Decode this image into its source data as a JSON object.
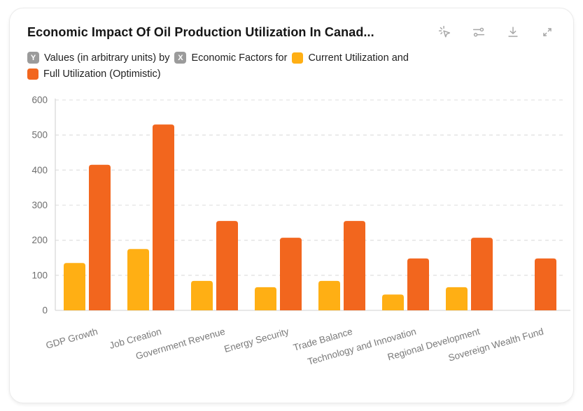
{
  "card": {
    "title": "Economic Impact Of Oil Production Utilization In Canad..."
  },
  "toolbar": {
    "icons": [
      "interact-icon",
      "sliders-icon",
      "download-icon",
      "expand-icon"
    ]
  },
  "subtitle": {
    "y_badge": "Y",
    "y_text": "Values (in arbitrary units) by",
    "x_badge": "X",
    "x_text": "Economic Factors for",
    "series1_text": "Current Utilization and",
    "series2_text": "Full Utilization (Optimistic)"
  },
  "colors": {
    "series1": "#FFAF14",
    "series2": "#F2661E",
    "grid": "#e3e3e3",
    "axis": "#d9d9d9",
    "tick_label": "#6e6e6e",
    "category_label": "#7a7a7a"
  },
  "chart_data": {
    "type": "bar",
    "title": "Economic Impact Of Oil Production Utilization In Canad...",
    "ylabel": "Values (in arbitrary units)",
    "xlabel": "Economic Factors",
    "categories": [
      "GDP Growth",
      "Job Creation",
      "Government Revenue",
      "Energy Security",
      "Trade Balance",
      "Technology and Innovation",
      "Regional Development",
      "Sovereign Wealth Fund"
    ],
    "series": [
      {
        "name": "Current Utilization",
        "color": "#FFAF14",
        "values": [
          135,
          175,
          84,
          66,
          84,
          45,
          66,
          0
        ]
      },
      {
        "name": "Full Utilization (Optimistic)",
        "color": "#F2661E",
        "values": [
          415,
          530,
          255,
          207,
          255,
          148,
          207,
          148
        ]
      }
    ],
    "ylim": [
      0,
      600
    ],
    "yticks": [
      0,
      100,
      200,
      300,
      400,
      500,
      600
    ],
    "grid": "horizontal-dashed",
    "legend_position": "subtitle-inline",
    "bar_corner_radius": 4,
    "x_label_rotation": -16
  }
}
